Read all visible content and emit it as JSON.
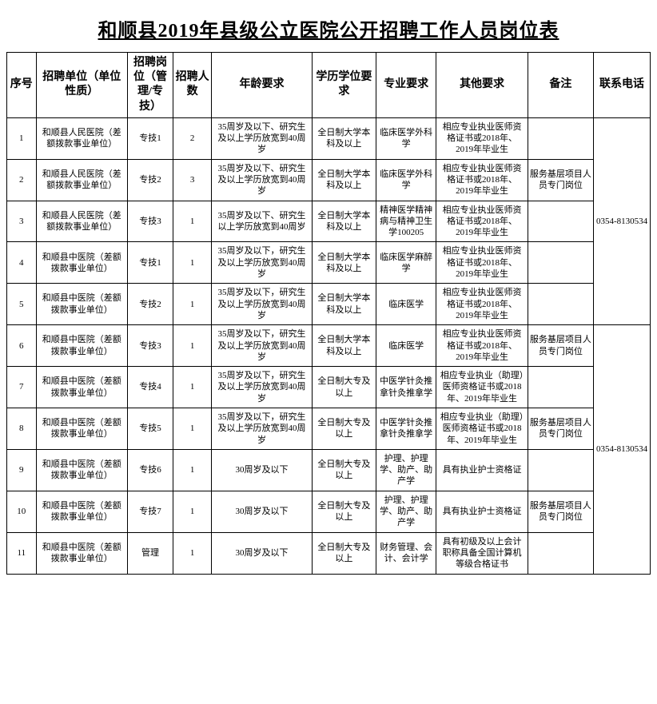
{
  "title": "和顺县2019年县级公立医院公开招聘工作人员岗位表",
  "columns": {
    "seq": "序号",
    "unit": "招聘单位（单位性质）",
    "post": "招聘岗位（管理/专技）",
    "count": "招聘人数",
    "age": "年龄要求",
    "edu": "学历学位要求",
    "major": "专业要求",
    "other": "其他要求",
    "remark": "备注",
    "phone": "联系电话"
  },
  "phone1": "0354-8130534",
  "phone2": "0354-8130534",
  "rows": [
    {
      "seq": "1",
      "unit": "和顺县人民医院（差额拨款事业单位）",
      "post": "专技1",
      "count": "2",
      "age": "35周岁及以下、研究生及以上学历放宽到40周岁",
      "edu": "全日制大学本科及以上",
      "major": "临床医学外科学",
      "other": "相应专业执业医师资格证书或2018年、2019年毕业生",
      "remark": ""
    },
    {
      "seq": "2",
      "unit": "和顺县人民医院（差额拨款事业单位）",
      "post": "专技2",
      "count": "3",
      "age": "35周岁及以下、研究生及以上学历放宽到40周岁",
      "edu": "全日制大学本科及以上",
      "major": "临床医学外科学",
      "other": "相应专业执业医师资格证书或2018年、2019年毕业生",
      "remark": "服务基层项目人员专门岗位"
    },
    {
      "seq": "3",
      "unit": "和顺县人民医院（差额拨款事业单位）",
      "post": "专技3",
      "count": "1",
      "age": "35周岁及以下、研究生以上学历放宽到40周岁",
      "edu": "全日制大学本科及以上",
      "major": "精神医学精神病与精神卫生学100205",
      "other": "相应专业执业医师资格证书或2018年、2019年毕业生",
      "remark": ""
    },
    {
      "seq": "4",
      "unit": "和顺县中医院（差额拨款事业单位）",
      "post": "专技1",
      "count": "1",
      "age": "35周岁及以下，研究生及以上学历放宽到40周岁",
      "edu": "全日制大学本科及以上",
      "major": "临床医学麻醉学",
      "other": "相应专业执业医师资格证书或2018年、2019年毕业生",
      "remark": ""
    },
    {
      "seq": "5",
      "unit": "和顺县中医院（差额拨款事业单位）",
      "post": "专技2",
      "count": "1",
      "age": "35周岁及以下，研究生及以上学历放宽到40周岁",
      "edu": "全日制大学本科及以上",
      "major": "临床医学",
      "other": "相应专业执业医师资格证书或2018年、2019年毕业生",
      "remark": ""
    },
    {
      "seq": "6",
      "unit": "和顺县中医院（差额拨款事业单位）",
      "post": "专技3",
      "count": "1",
      "age": "35周岁及以下，研究生及以上学历放宽到40周岁",
      "edu": "全日制大学本科及以上",
      "major": "临床医学",
      "other": "相应专业执业医师资格证书或2018年、2019年毕业生",
      "remark": "服务基层项目人员专门岗位"
    },
    {
      "seq": "7",
      "unit": "和顺县中医院（差额拨款事业单位）",
      "post": "专技4",
      "count": "1",
      "age": "35周岁及以下，研究生及以上学历放宽到40周岁",
      "edu": "全日制大专及以上",
      "major": "中医学针灸推拿针灸推拿学",
      "other": "相应专业执业（助理）医师资格证书或2018年、2019年毕业生",
      "remark": ""
    },
    {
      "seq": "8",
      "unit": "和顺县中医院（差额拨款事业单位）",
      "post": "专技5",
      "count": "1",
      "age": "35周岁及以下，研究生及以上学历放宽到40周岁",
      "edu": "全日制大专及以上",
      "major": "中医学针灸推拿针灸推拿学",
      "other": "相应专业执业（助理）医师资格证书或2018年、2019年毕业生",
      "remark": "服务基层项目人员专门岗位"
    },
    {
      "seq": "9",
      "unit": "和顺县中医院（差额拨款事业单位）",
      "post": "专技6",
      "count": "1",
      "age": "30周岁及以下",
      "edu": "全日制大专及以上",
      "major": "护理、护理学、助产、助产学",
      "other": "具有执业护士资格证",
      "remark": ""
    },
    {
      "seq": "10",
      "unit": "和顺县中医院（差额拨款事业单位）",
      "post": "专技7",
      "count": "1",
      "age": "30周岁及以下",
      "edu": "全日制大专及以上",
      "major": "护理、护理学、助产、助产学",
      "other": "具有执业护士资格证",
      "remark": "服务基层项目人员专门岗位"
    },
    {
      "seq": "11",
      "unit": "和顺县中医院（差额拨款事业单位）",
      "post": "管理",
      "count": "1",
      "age": "30周岁及以下",
      "edu": "全日制大专及以上",
      "major": "财务管理、会计、会计学",
      "other": "具有初级及以上会计职称具备全国计算机等级合格证书",
      "remark": ""
    }
  ]
}
